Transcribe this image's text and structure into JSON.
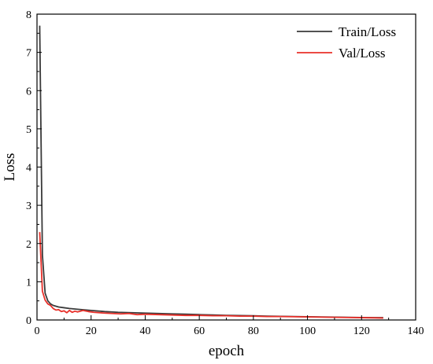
{
  "chart_data": {
    "type": "line",
    "xlabel": "epoch",
    "ylabel": "Loss",
    "xlim": [
      0,
      140
    ],
    "ylim": [
      0,
      8
    ],
    "xticks": [
      0,
      20,
      40,
      60,
      80,
      100,
      120,
      140
    ],
    "yticks": [
      0,
      1,
      2,
      3,
      4,
      5,
      6,
      7,
      8
    ],
    "grid": false,
    "legend_position": "top-right",
    "series": [
      {
        "name": "Train/Loss",
        "color": "#3a3a3a",
        "x": [
          1,
          2,
          3,
          4,
          5,
          6,
          8,
          10,
          12,
          15,
          20,
          25,
          30,
          35,
          40,
          45,
          50,
          55,
          60,
          65,
          70,
          75,
          80,
          85,
          90,
          95,
          100,
          105,
          110,
          115,
          120,
          125,
          128
        ],
        "y": [
          7.7,
          1.7,
          0.7,
          0.5,
          0.42,
          0.38,
          0.34,
          0.32,
          0.3,
          0.28,
          0.25,
          0.22,
          0.2,
          0.19,
          0.18,
          0.17,
          0.16,
          0.15,
          0.14,
          0.13,
          0.12,
          0.115,
          0.11,
          0.1,
          0.095,
          0.09,
          0.085,
          0.08,
          0.075,
          0.07,
          0.065,
          0.06,
          0.06
        ]
      },
      {
        "name": "Val/Loss",
        "color": "#e8302a",
        "x": [
          1,
          2,
          3,
          4,
          5,
          6,
          7,
          8,
          9,
          10,
          11,
          12,
          13,
          14,
          15,
          17,
          19,
          21,
          23,
          25,
          28,
          31,
          34,
          37,
          40,
          45,
          50,
          55,
          60,
          65,
          70,
          75,
          80,
          85,
          90,
          95,
          100,
          105,
          110,
          115,
          120,
          125,
          128
        ],
        "y": [
          2.3,
          0.75,
          0.52,
          0.42,
          0.38,
          0.3,
          0.26,
          0.27,
          0.22,
          0.24,
          0.19,
          0.25,
          0.2,
          0.23,
          0.21,
          0.25,
          0.22,
          0.2,
          0.19,
          0.18,
          0.17,
          0.16,
          0.17,
          0.14,
          0.15,
          0.14,
          0.13,
          0.12,
          0.12,
          0.11,
          0.11,
          0.1,
          0.1,
          0.09,
          0.09,
          0.085,
          0.08,
          0.075,
          0.07,
          0.065,
          0.06,
          0.055,
          0.05
        ]
      }
    ]
  }
}
